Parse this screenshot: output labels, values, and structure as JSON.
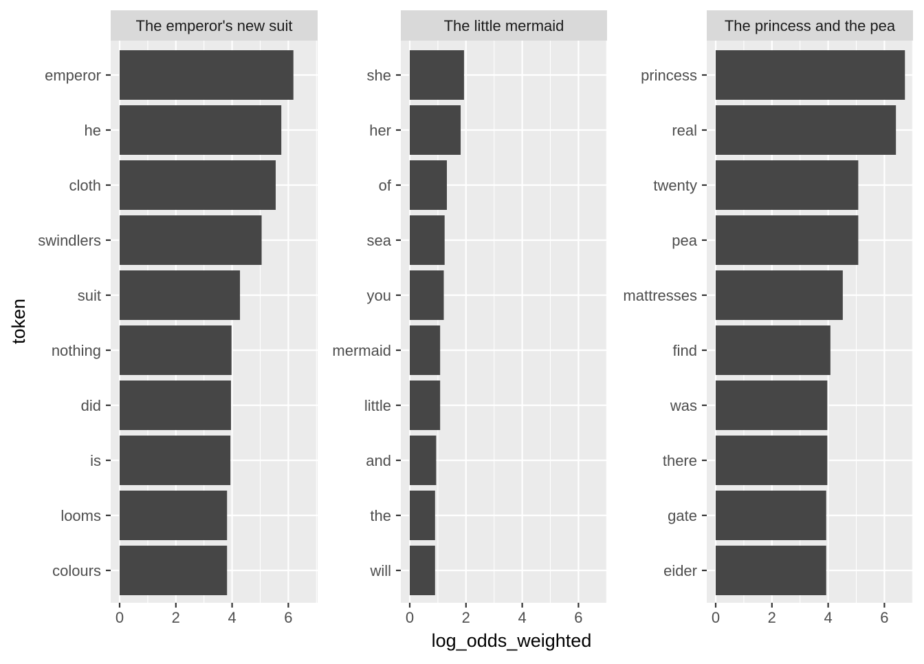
{
  "chart_data": {
    "type": "bar",
    "orientation": "horizontal",
    "xlabel": "log_odds_weighted",
    "ylabel": "token",
    "xlim": [
      -0.3,
      7.0
    ],
    "x_ticks": [
      0,
      2,
      4,
      6
    ],
    "grid": true,
    "bar_color": "#464646",
    "panel_background": "#ebebeb",
    "strip_background": "#d9d9d9",
    "facets": [
      {
        "title": "The emperor's new suit",
        "categories": [
          "emperor",
          "he",
          "cloth",
          "swindlers",
          "suit",
          "nothing",
          "did",
          "is",
          "looms",
          "colours"
        ],
        "values": [
          6.18,
          5.75,
          5.55,
          5.05,
          4.28,
          3.98,
          3.96,
          3.94,
          3.82,
          3.82
        ]
      },
      {
        "title": "The little mermaid",
        "categories": [
          "she",
          "her",
          "of",
          "sea",
          "you",
          "mermaid",
          "little",
          "and",
          "the",
          "will"
        ],
        "values": [
          1.93,
          1.81,
          1.32,
          1.24,
          1.21,
          1.08,
          1.08,
          0.94,
          0.9,
          0.9
        ]
      },
      {
        "title": "The princess and the pea",
        "categories": [
          "princess",
          "real",
          "twenty",
          "pea",
          "mattresses",
          "find",
          "was",
          "there",
          "gate",
          "eider"
        ],
        "values": [
          6.73,
          6.41,
          5.07,
          5.07,
          4.52,
          4.08,
          3.97,
          3.97,
          3.93,
          3.93
        ]
      }
    ]
  }
}
